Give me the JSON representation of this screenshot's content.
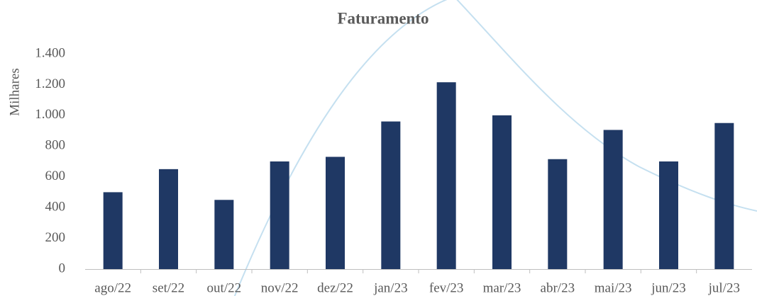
{
  "chart_data": {
    "type": "bar",
    "title": "Faturamento",
    "y_label": "Milhares",
    "categories": [
      "ago/22",
      "set/22",
      "out/22",
      "nov/22",
      "dez/22",
      "jan/23",
      "fev/23",
      "mar/23",
      "abr/23",
      "mai/23",
      "jun/23",
      "jul/23"
    ],
    "values": [
      500,
      650,
      450,
      700,
      730,
      960,
      1215,
      1000,
      715,
      905,
      700,
      950
    ],
    "color": "#1f3864",
    "ylim": [
      0,
      1400
    ],
    "yticks": [
      0,
      200,
      400,
      600,
      800,
      {
        "value": 1000,
        "label": "1.000"
      },
      {
        "value": 1200,
        "label": "1.200"
      },
      {
        "value": 1400,
        "label": "1.400"
      }
    ],
    "grid": false
  }
}
